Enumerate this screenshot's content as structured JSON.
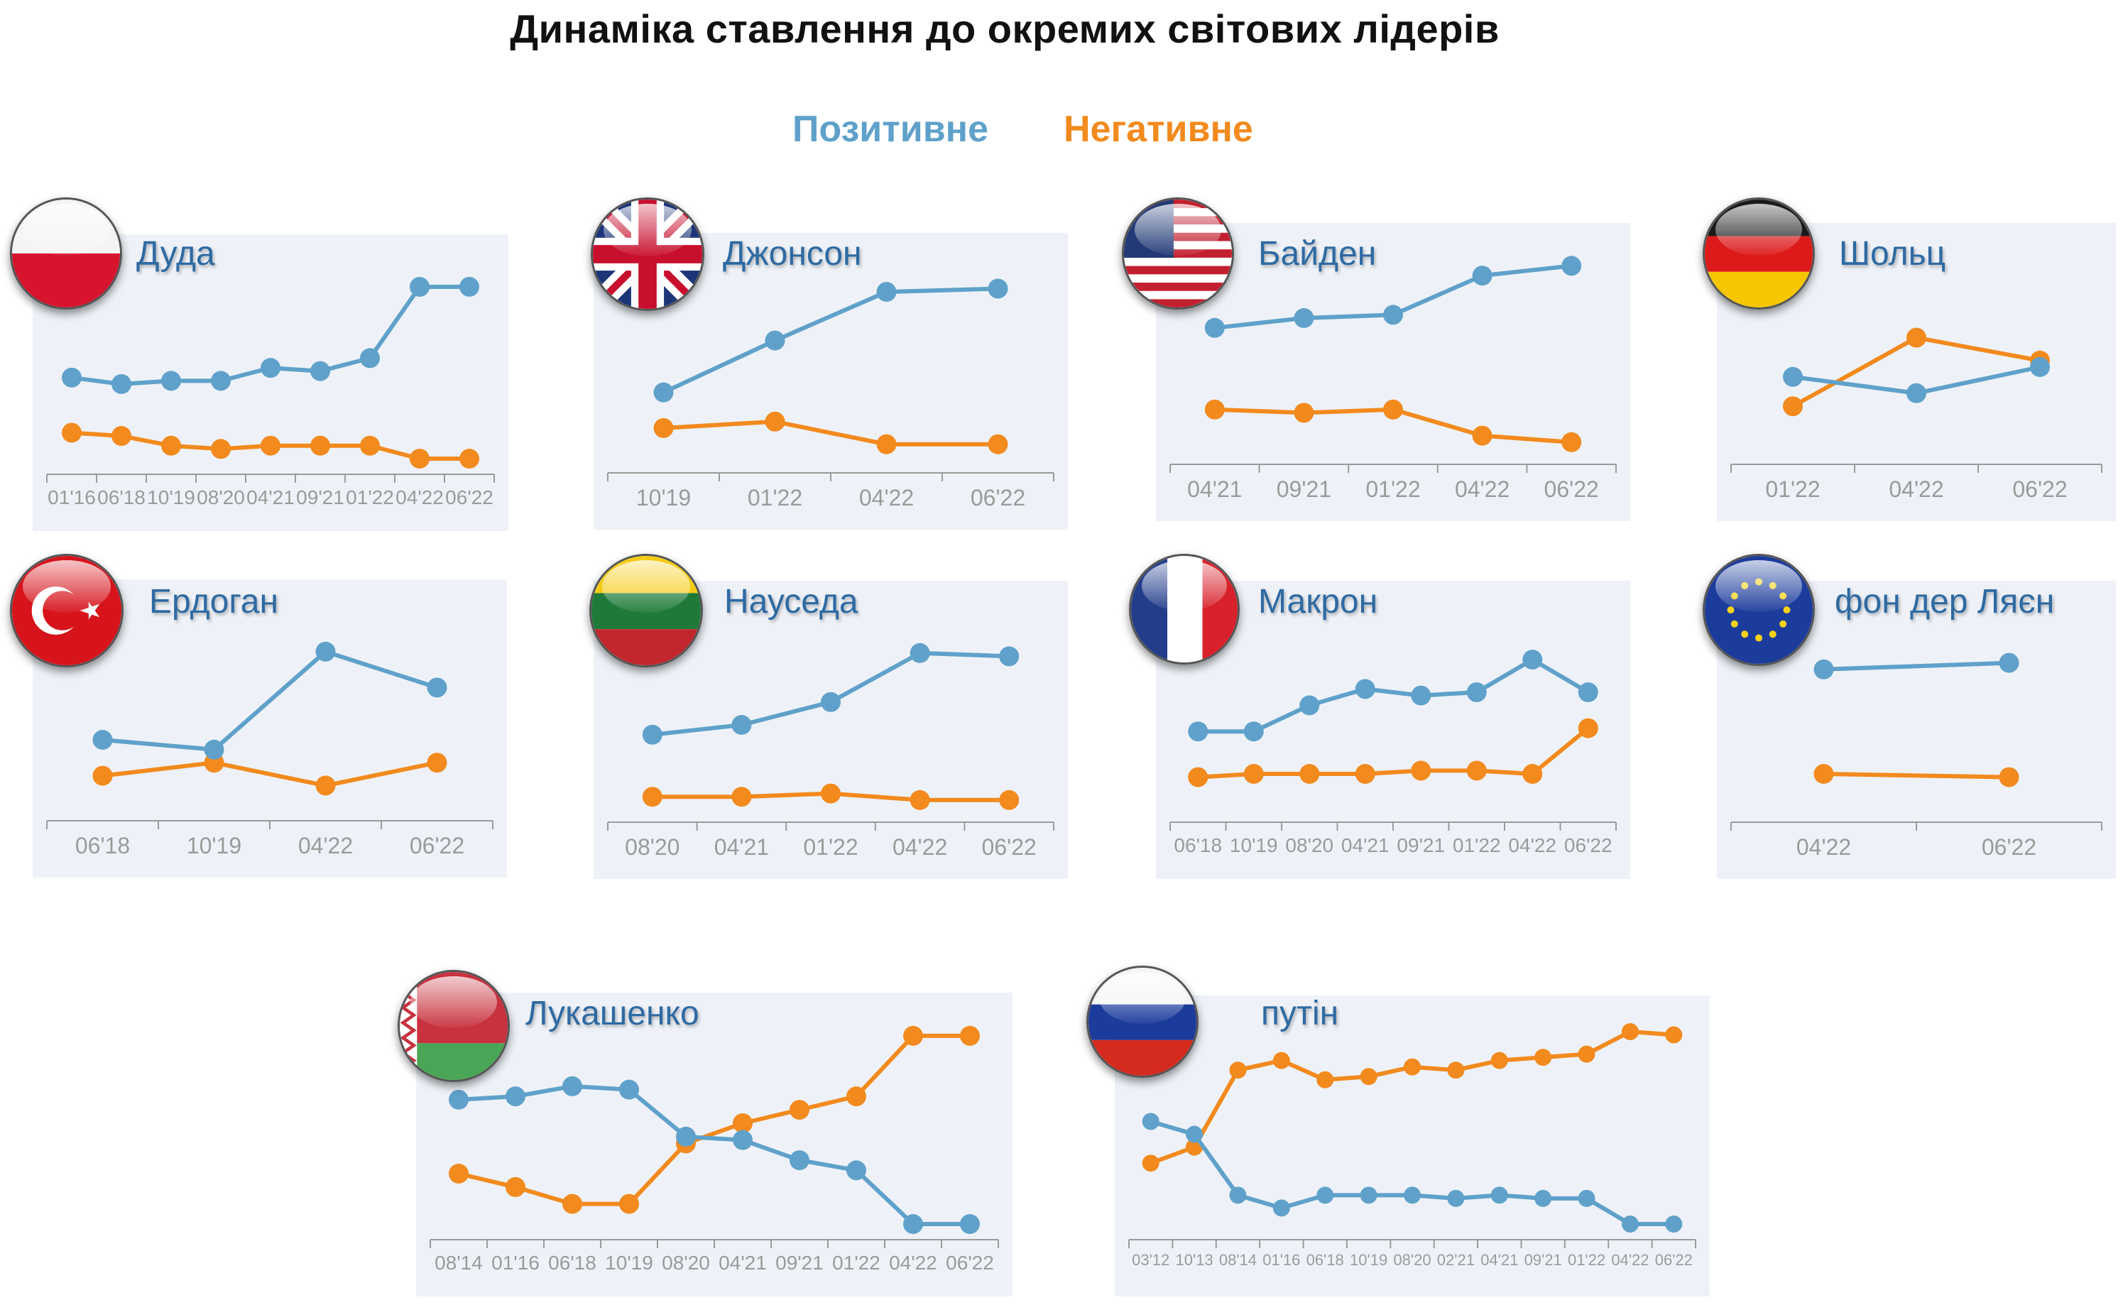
{
  "title": "Динаміка ставлення до окремих світових лідерів",
  "legend": {
    "positive": "Позитивне",
    "negative": "Негативне"
  },
  "colors": {
    "positive": "#5fa1ca",
    "negative": "#f28a1e",
    "axis": "#9a9a9a",
    "panel": "#eef2f8",
    "name": "#2e6aa3"
  },
  "chart_data": [
    {
      "type": "line",
      "name": "Дуда",
      "flag": "poland-flag-icon",
      "categories": [
        "01'16",
        "06'18",
        "10'19",
        "08'20",
        "04'21",
        "09'21",
        "01'22",
        "04'22",
        "06'22"
      ],
      "series": [
        {
          "name": "Позитивне",
          "values": [
            25,
            23,
            24,
            24,
            28,
            27,
            31,
            53,
            53
          ]
        },
        {
          "name": "Негативне",
          "values": [
            8,
            7,
            4,
            3,
            4,
            4,
            4,
            0,
            0
          ]
        }
      ]
    },
    {
      "type": "line",
      "name": "Джонсон",
      "flag": "uk-flag-icon",
      "categories": [
        "10'19",
        "01'22",
        "04'22",
        "06'22"
      ],
      "series": [
        {
          "name": "Позитивне",
          "values": [
            20,
            36,
            51,
            52
          ]
        },
        {
          "name": "Негативне",
          "values": [
            9,
            11,
            4,
            4
          ]
        }
      ]
    },
    {
      "type": "line",
      "name": "Байден",
      "flag": "usa-flag-icon",
      "categories": [
        "04'21",
        "09'21",
        "01'22",
        "04'22",
        "06'22"
      ],
      "series": [
        {
          "name": "Позитивне",
          "values": [
            37,
            40,
            41,
            53,
            56
          ]
        },
        {
          "name": "Негативне",
          "values": [
            12,
            11,
            12,
            4,
            2
          ]
        }
      ]
    },
    {
      "type": "line",
      "name": "Шольц",
      "flag": "germany-flag-icon",
      "categories": [
        "01'22",
        "04'22",
        "06'22"
      ],
      "series": [
        {
          "name": "Позитивне",
          "values": [
            22,
            17,
            25
          ]
        },
        {
          "name": "Негативне",
          "values": [
            13,
            34,
            27
          ]
        }
      ]
    },
    {
      "type": "line",
      "name": "Ердоган",
      "flag": "turkey-flag-icon",
      "categories": [
        "06'18",
        "10'19",
        "04'22",
        "06'22"
      ],
      "series": [
        {
          "name": "Позитивне",
          "values": [
            20,
            17,
            47,
            36
          ]
        },
        {
          "name": "Негативне",
          "values": [
            9,
            13,
            6,
            13
          ]
        }
      ]
    },
    {
      "type": "line",
      "name": "Науседа",
      "flag": "lithuania-flag-icon",
      "categories": [
        "08'20",
        "04'21",
        "01'22",
        "04'22",
        "06'22"
      ],
      "series": [
        {
          "name": "Позитивне",
          "values": [
            22,
            25,
            32,
            47,
            46
          ]
        },
        {
          "name": "Негативне",
          "values": [
            3,
            3,
            4,
            2,
            2
          ]
        }
      ]
    },
    {
      "type": "line",
      "name": "Макрон",
      "flag": "france-flag-icon",
      "categories": [
        "06'18",
        "10'19",
        "08'20",
        "04'21",
        "09'21",
        "01'22",
        "04'22",
        "06'22"
      ],
      "series": [
        {
          "name": "Позитивне",
          "values": [
            23,
            23,
            31,
            36,
            34,
            35,
            45,
            35
          ]
        },
        {
          "name": "Негативне",
          "values": [
            9,
            10,
            10,
            10,
            11,
            11,
            10,
            24
          ]
        }
      ]
    },
    {
      "type": "line",
      "name": "фон дер Ляєн",
      "flag": "eu-flag-icon",
      "categories": [
        "04'22",
        "06'22"
      ],
      "series": [
        {
          "name": "Позитивне",
          "values": [
            42,
            44
          ]
        },
        {
          "name": "Негативне",
          "values": [
            10,
            9
          ]
        }
      ]
    },
    {
      "type": "line",
      "name": "Лукашенко",
      "flag": "belarus-flag-icon",
      "categories": [
        "08'14",
        "01'16",
        "06'18",
        "10'19",
        "08'20",
        "04'21",
        "09'21",
        "01'22",
        "04'22",
        "06'22"
      ],
      "series": [
        {
          "name": "Позитивне",
          "values": [
            37,
            38,
            41,
            40,
            26,
            25,
            19,
            16,
            0,
            0
          ]
        },
        {
          "name": "Негативне",
          "values": [
            15,
            11,
            6,
            6,
            24,
            30,
            34,
            38,
            56,
            56
          ]
        }
      ]
    },
    {
      "type": "line",
      "name": "путін",
      "flag": "russia-flag-icon",
      "categories": [
        "03'12",
        "10'13",
        "08'14",
        "01'16",
        "06'18",
        "10'19",
        "08'20",
        "02'21",
        "04'21",
        "09'21",
        "01'22",
        "04'22",
        "06'22"
      ],
      "series": [
        {
          "name": "Позитивне",
          "values": [
            32,
            28,
            9,
            5,
            9,
            9,
            9,
            8,
            9,
            8,
            8,
            0,
            0
          ]
        },
        {
          "name": "Негативне",
          "values": [
            19,
            24,
            48,
            51,
            45,
            46,
            49,
            48,
            51,
            52,
            53,
            60,
            59
          ]
        }
      ]
    }
  ]
}
